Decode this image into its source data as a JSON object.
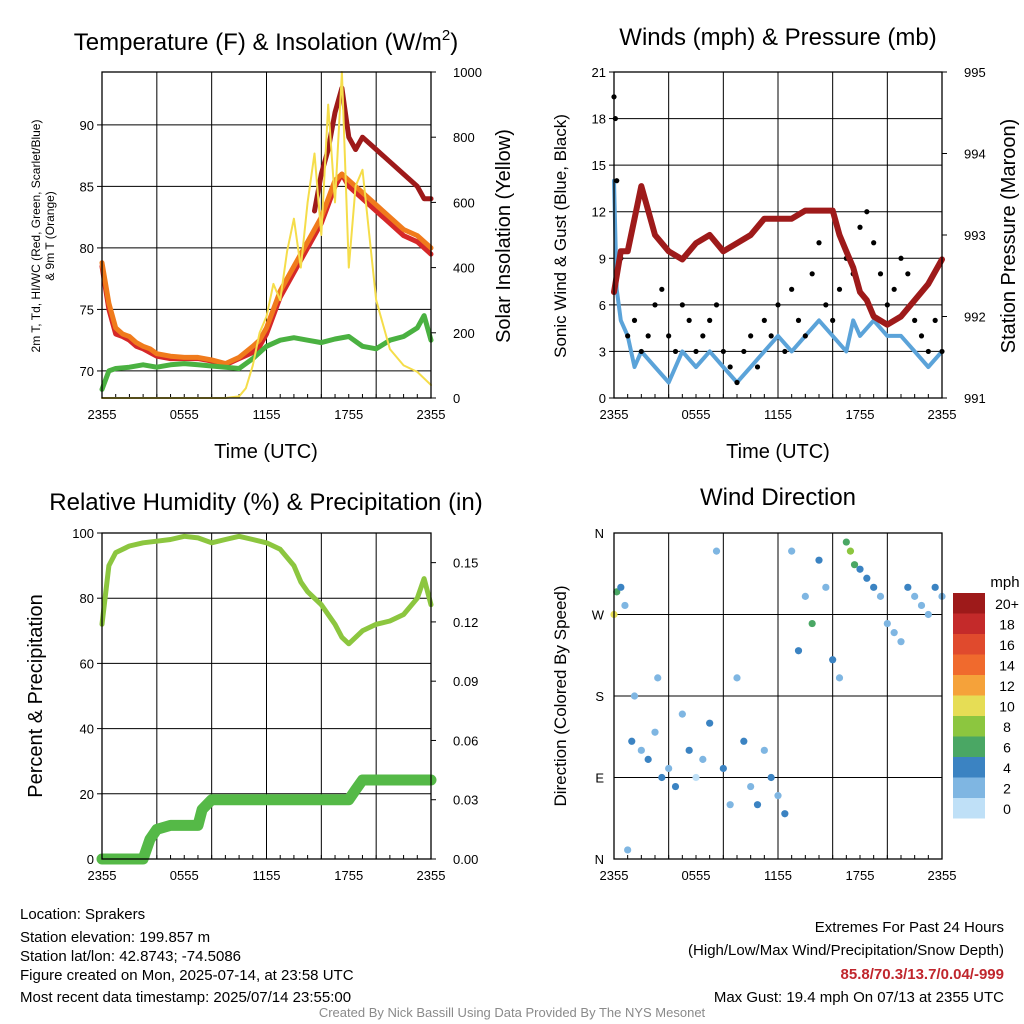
{
  "chart_data": [
    {
      "type": "line",
      "title": "Temperature (F) & Insolation (W/m²)",
      "title_main": "Temperature (F) & Insolation (W/m",
      "title_sup": "2",
      "title_end": ")",
      "xlabel": "Time (UTC)",
      "ylabel_line1": "2m T, Td, HI/WC (Red, Green, Scarlet/Blue)",
      "ylabel_line2": "& 9m T (Orange)",
      "ylabel_right": "Solar Insolation (Yellow)",
      "x_ticks": [
        "2355",
        "0555",
        "1155",
        "1755",
        "2355"
      ],
      "ylim": [
        67.8,
        94.3
      ],
      "y_ticks": [
        70,
        75,
        80,
        85,
        90
      ],
      "ylim_right": [
        0,
        1000
      ],
      "y_ticks_right": [
        0,
        200,
        400,
        600,
        800,
        1000
      ],
      "series": [
        {
          "color": "#d62828",
          "x": [
            0,
            0.5,
            1,
            1.5,
            2,
            2.5,
            3,
            3.5,
            4,
            5,
            6,
            7,
            8,
            9,
            10,
            11,
            11.5,
            12,
            13,
            14,
            15,
            16,
            16.5,
            17,
            17.5,
            18,
            19,
            20,
            21,
            22,
            23,
            24
          ],
          "values": [
            78.5,
            75,
            73,
            72.8,
            72.5,
            72,
            71.8,
            71.5,
            71.2,
            71,
            71,
            71,
            70.8,
            70.5,
            71,
            71.5,
            72,
            73,
            76,
            78,
            80,
            82,
            83.5,
            85,
            86,
            85,
            84,
            83,
            82,
            81,
            80.5,
            79.5
          ]
        },
        {
          "color": "#f07b1c",
          "x": [
            0,
            0.5,
            1,
            1.5,
            2,
            2.5,
            3,
            3.5,
            4,
            5,
            6,
            7,
            8,
            9,
            10,
            11,
            11.5,
            12,
            13,
            14,
            15,
            16,
            16.5,
            17,
            17.5,
            18,
            19,
            20,
            21,
            22,
            23,
            24
          ],
          "values": [
            78.8,
            75.5,
            73.5,
            73,
            72.8,
            72.3,
            72,
            71.8,
            71.4,
            71.2,
            71.1,
            71.1,
            70.9,
            70.6,
            71.1,
            72,
            72.5,
            73.5,
            76.5,
            78.5,
            80.5,
            82.5,
            84,
            85.5,
            86,
            85.5,
            84.5,
            83.5,
            82.5,
            81.5,
            81,
            80
          ]
        },
        {
          "color": "#9e1a1a",
          "x": [
            15.5,
            16,
            16.5,
            17,
            17.5,
            18,
            18.5,
            19,
            20,
            21,
            22,
            23,
            23.5,
            24
          ],
          "values": [
            83,
            86,
            88,
            91,
            93,
            89,
            88,
            89,
            88,
            87,
            86,
            85,
            84,
            84
          ]
        },
        {
          "color": "#4ab141",
          "x": [
            0,
            0.5,
            1,
            2,
            3,
            4,
            5,
            6,
            7,
            8,
            9,
            10,
            11,
            12,
            13,
            14,
            15,
            16,
            17,
            18,
            19,
            20,
            21,
            22,
            23,
            23.5,
            24
          ],
          "values": [
            68.5,
            70,
            70.2,
            70.3,
            70.5,
            70.3,
            70.5,
            70.6,
            70.5,
            70.4,
            70.3,
            70.2,
            71,
            72,
            72.5,
            72.7,
            72.5,
            72.3,
            72.6,
            72.8,
            72,
            71.8,
            72.5,
            72.8,
            73.5,
            74.5,
            72.5
          ]
        },
        {
          "color": "#f5dd4a",
          "axis": "right",
          "x": [
            0,
            2,
            4,
            6,
            8,
            9,
            10,
            10.5,
            11,
            11.5,
            12,
            12.5,
            13,
            13.5,
            14,
            14.5,
            15,
            15.5,
            16,
            16.5,
            17,
            17.5,
            18,
            18.5,
            19,
            19.5,
            20,
            21,
            22,
            23,
            24
          ],
          "values": [
            0,
            0,
            0,
            0,
            0,
            0,
            5,
            30,
            100,
            200,
            250,
            350,
            300,
            450,
            550,
            400,
            600,
            750,
            500,
            900,
            600,
            1000,
            400,
            650,
            700,
            500,
            300,
            150,
            100,
            80,
            40
          ]
        }
      ]
    },
    {
      "type": "line",
      "title": "Winds (mph) & Pressure (mb)",
      "xlabel": "Time (UTC)",
      "ylabel": "Sonic Wind & Gust (Blue, Black)",
      "ylabel_right": "Station Pressure (Maroon)",
      "x_ticks": [
        "2355",
        "0555",
        "1155",
        "1755",
        "2355"
      ],
      "ylim": [
        0,
        21
      ],
      "y_ticks": [
        0,
        3,
        6,
        9,
        12,
        15,
        18,
        21
      ],
      "ylim_right": [
        991,
        995
      ],
      "y_ticks_right": [
        991,
        992,
        993,
        994,
        995
      ],
      "series": [
        {
          "color": "#5ba3d9",
          "x": [
            0,
            0.2,
            0.5,
            1,
            1.5,
            2,
            3,
            4,
            5,
            6,
            7,
            8,
            9,
            10,
            11,
            12,
            13,
            14,
            15,
            16,
            17,
            17.5,
            18,
            19,
            20,
            21,
            22,
            23,
            24
          ],
          "values": [
            14,
            7,
            5,
            4,
            2,
            3,
            2,
            1,
            3,
            2,
            3,
            2,
            1,
            2,
            3,
            4,
            3,
            4,
            5,
            4,
            3,
            5,
            4,
            5,
            4,
            4,
            3,
            2,
            3
          ]
        },
        {
          "color": "#9e1a1a",
          "axis": "right",
          "x": [
            0,
            0.5,
            1,
            1.5,
            2,
            2.5,
            3,
            4,
            5,
            6,
            7,
            8,
            9,
            10,
            11,
            12,
            13,
            14,
            15,
            16,
            16.5,
            17,
            17.5,
            18,
            18.5,
            19,
            20,
            21,
            22,
            22.5,
            23,
            24
          ],
          "values": [
            992.3,
            992.8,
            992.8,
            993.2,
            993.6,
            993.3,
            993,
            992.8,
            992.7,
            992.9,
            993,
            992.8,
            992.9,
            993,
            993.2,
            993.2,
            993.2,
            993.3,
            993.3,
            993.3,
            993.0,
            992.8,
            992.6,
            992.3,
            992.2,
            992.0,
            991.9,
            992.0,
            992.2,
            992.3,
            992.4,
            992.7
          ]
        }
      ],
      "gust_points": {
        "color": "#000000",
        "x": [
          0,
          0.1,
          0.2,
          0.5,
          1,
          1.5,
          2,
          2.5,
          3,
          3.5,
          4,
          4.5,
          5,
          5.5,
          6,
          6.5,
          7,
          7.5,
          8,
          8.5,
          9,
          9.5,
          10,
          10.5,
          11,
          11.5,
          12,
          12.5,
          13,
          13.5,
          14,
          14.5,
          15,
          15.5,
          16,
          16.5,
          17,
          17.5,
          18,
          18.5,
          19,
          19.5,
          20,
          20.5,
          21,
          21.5,
          22,
          22.5,
          23,
          23.5,
          24
        ],
        "values": [
          19.4,
          18,
          14,
          9,
          4,
          5,
          3,
          4,
          6,
          7,
          4,
          3,
          6,
          5,
          3,
          4,
          5,
          6,
          3,
          2,
          1,
          3,
          4,
          2,
          5,
          4,
          6,
          3,
          7,
          5,
          4,
          8,
          10,
          6,
          5,
          7,
          9,
          8,
          11,
          12,
          10,
          8,
          6,
          7,
          9,
          8,
          5,
          4,
          3,
          5,
          3
        ]
      }
    },
    {
      "type": "line",
      "title": "Relative Humidity (%) & Precipitation (in)",
      "ylabel": "Percent & Precipitation",
      "x_ticks": [
        "2355",
        "0555",
        "1155",
        "1755",
        "2355"
      ],
      "ylim": [
        0,
        100
      ],
      "y_ticks": [
        0,
        20,
        40,
        60,
        80,
        100
      ],
      "ylim_right": [
        0,
        0.165
      ],
      "y_ticks_right": [
        "0.00",
        "0.03",
        "0.06",
        "0.09",
        "0.12",
        "0.15"
      ],
      "series": [
        {
          "color": "#8cc63f",
          "x": [
            0,
            0.5,
            1,
            2,
            3,
            4,
            5,
            6,
            7,
            8,
            9,
            10,
            11,
            12,
            13,
            14,
            14.5,
            15,
            16,
            17,
            17.5,
            18,
            19,
            20,
            21,
            22,
            23,
            23.5,
            24
          ],
          "values": [
            72,
            90,
            94,
            96,
            97,
            97.5,
            98,
            99,
            98.5,
            97,
            98,
            99,
            98,
            97,
            95,
            90,
            85,
            82,
            78,
            72,
            68,
            66,
            70,
            72,
            73,
            75,
            80,
            86,
            78
          ]
        },
        {
          "color": "#55b947",
          "axis": "right",
          "x": [
            0,
            0.5,
            1,
            2,
            3,
            3.5,
            4,
            5,
            6,
            7,
            7.3,
            8,
            9,
            10,
            11,
            12,
            13,
            14,
            15,
            16,
            17,
            18,
            18.5,
            19,
            20,
            21,
            22,
            23,
            24
          ],
          "values": [
            0,
            0,
            0,
            0,
            0,
            0.01,
            0.015,
            0.017,
            0.017,
            0.017,
            0.025,
            0.03,
            0.03,
            0.03,
            0.03,
            0.03,
            0.03,
            0.03,
            0.03,
            0.03,
            0.03,
            0.03,
            0.035,
            0.04,
            0.04,
            0.04,
            0.04,
            0.04,
            0.04
          ]
        }
      ]
    },
    {
      "type": "scatter",
      "title": "Wind Direction",
      "ylabel": "Direction (Colored By Speed)",
      "x_ticks": [
        "2355",
        "0555",
        "1155",
        "1755",
        "2355"
      ],
      "y_ticks": [
        "N",
        "E",
        "S",
        "W",
        "N"
      ],
      "ylim": [
        0,
        360
      ],
      "colorbar": {
        "title": "mph",
        "labels": [
          "20+",
          "18",
          "16",
          "14",
          "12",
          "10",
          "8",
          "6",
          "4",
          "2",
          "0"
        ],
        "colors": [
          "#9e1a1a",
          "#c42a2a",
          "#e04a2d",
          "#f06a2d",
          "#f5a23a",
          "#e6dd55",
          "#8cc63f",
          "#4aa764",
          "#3b83c2",
          "#7fb6e2",
          "#bfe0f7"
        ]
      },
      "points": [
        [
          0,
          270,
          "#e6dd55"
        ],
        [
          0.2,
          295,
          "#4aa764"
        ],
        [
          0.5,
          300,
          "#3b83c2"
        ],
        [
          0.8,
          280,
          "#7fb6e2"
        ],
        [
          1,
          10,
          "#7fb6e2"
        ],
        [
          1.3,
          130,
          "#3b83c2"
        ],
        [
          1.5,
          180,
          "#7fb6e2"
        ],
        [
          2,
          120,
          "#7fb6e2"
        ],
        [
          2.5,
          110,
          "#3b83c2"
        ],
        [
          3,
          140,
          "#7fb6e2"
        ],
        [
          3.2,
          200,
          "#7fb6e2"
        ],
        [
          3.5,
          90,
          "#3b83c2"
        ],
        [
          4,
          100,
          "#7fb6e2"
        ],
        [
          4.5,
          80,
          "#3b83c2"
        ],
        [
          5,
          160,
          "#7fb6e2"
        ],
        [
          5.5,
          120,
          "#3b83c2"
        ],
        [
          6,
          90,
          "#bfe0f7"
        ],
        [
          6.5,
          110,
          "#7fb6e2"
        ],
        [
          7,
          150,
          "#3b83c2"
        ],
        [
          7.5,
          340,
          "#7fb6e2"
        ],
        [
          8,
          100,
          "#3b83c2"
        ],
        [
          8.5,
          60,
          "#7fb6e2"
        ],
        [
          9,
          200,
          "#7fb6e2"
        ],
        [
          9.5,
          130,
          "#3b83c2"
        ],
        [
          10,
          80,
          "#7fb6e2"
        ],
        [
          10.5,
          60,
          "#3b83c2"
        ],
        [
          11,
          120,
          "#7fb6e2"
        ],
        [
          11.5,
          90,
          "#3b83c2"
        ],
        [
          12,
          70,
          "#7fb6e2"
        ],
        [
          12.5,
          50,
          "#3b83c2"
        ],
        [
          13,
          340,
          "#7fb6e2"
        ],
        [
          13.5,
          230,
          "#3b83c2"
        ],
        [
          14,
          290,
          "#7fb6e2"
        ],
        [
          14.5,
          260,
          "#4aa764"
        ],
        [
          15,
          330,
          "#3b83c2"
        ],
        [
          15.5,
          300,
          "#7fb6e2"
        ],
        [
          16,
          220,
          "#3b83c2"
        ],
        [
          16.5,
          200,
          "#7fb6e2"
        ],
        [
          17,
          350,
          "#4aa764"
        ],
        [
          17.3,
          340,
          "#8cc63f"
        ],
        [
          17.6,
          325,
          "#4aa764"
        ],
        [
          18,
          320,
          "#3b83c2"
        ],
        [
          18.5,
          310,
          "#3b83c2"
        ],
        [
          19,
          300,
          "#3b83c2"
        ],
        [
          19.5,
          290,
          "#7fb6e2"
        ],
        [
          20,
          260,
          "#7fb6e2"
        ],
        [
          20.5,
          250,
          "#7fb6e2"
        ],
        [
          21,
          240,
          "#7fb6e2"
        ],
        [
          21.5,
          300,
          "#3b83c2"
        ],
        [
          22,
          290,
          "#7fb6e2"
        ],
        [
          22.5,
          280,
          "#7fb6e2"
        ],
        [
          23,
          270,
          "#7fb6e2"
        ],
        [
          23.5,
          300,
          "#3b83c2"
        ],
        [
          24,
          290,
          "#7fb6e2"
        ]
      ]
    }
  ],
  "footer": {
    "location": "Location: Sprakers",
    "elevation": "Station elevation: 199.857 m",
    "latlon": "Station lat/lon: 42.8743; -74.5086",
    "created": "Figure created on Mon, 2025-07-14, at 23:58 UTC",
    "recent": "Most recent data timestamp: 2025/07/14 23:55:00",
    "extremes_title": "Extremes For Past 24 Hours",
    "extremes_sub": "(High/Low/Max Wind/Precipitation/Snow Depth)",
    "extremes_values": "85.8/70.3/13.7/0.04/-999",
    "max_gust": "Max Gust: 19.4 mph On 07/13 at 2355 UTC",
    "credit": "Created By Nick Bassill Using Data Provided By The NYS Mesonet"
  }
}
